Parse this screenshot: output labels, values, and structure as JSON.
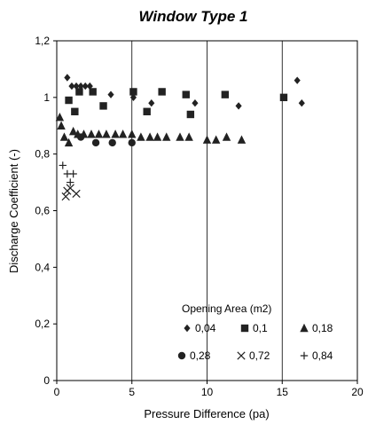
{
  "chart_data": {
    "type": "scatter",
    "title": "Window Type 1",
    "xlabel": "Pressure Difference (pa)",
    "ylabel": "Discharge Coefficient (-)",
    "xlim": [
      0,
      20
    ],
    "ylim": [
      0,
      1.2
    ],
    "x_ticks": [
      "0",
      "5",
      "10",
      "15",
      "20"
    ],
    "y_ticks": [
      "0",
      "0,2",
      "0,4",
      "0,6",
      "0,8",
      "1",
      "1,2"
    ],
    "grid": "vertical",
    "legend": {
      "title": "Opening Area (m2)",
      "placement": "bottom-right"
    },
    "series": [
      {
        "name": "0,04",
        "marker": "diamond",
        "points": [
          [
            0.7,
            1.07
          ],
          [
            1.0,
            1.04
          ],
          [
            1.3,
            1.04
          ],
          [
            1.6,
            1.04
          ],
          [
            1.9,
            1.04
          ],
          [
            2.2,
            1.04
          ],
          [
            3.6,
            1.01
          ],
          [
            5.1,
            1.0
          ],
          [
            6.3,
            0.98
          ],
          [
            9.2,
            0.98
          ],
          [
            12.1,
            0.97
          ],
          [
            16.0,
            1.06
          ],
          [
            16.3,
            0.98
          ]
        ]
      },
      {
        "name": "0,1",
        "marker": "square",
        "points": [
          [
            0.8,
            0.99
          ],
          [
            1.2,
            0.95
          ],
          [
            1.5,
            1.02
          ],
          [
            2.4,
            1.02
          ],
          [
            3.1,
            0.97
          ],
          [
            5.1,
            1.02
          ],
          [
            6.0,
            0.95
          ],
          [
            7.0,
            1.02
          ],
          [
            8.6,
            1.01
          ],
          [
            8.9,
            0.94
          ],
          [
            11.2,
            1.01
          ],
          [
            15.1,
            1.0
          ]
        ]
      },
      {
        "name": "0,18",
        "marker": "triangle",
        "points": [
          [
            0.2,
            0.93
          ],
          [
            0.3,
            0.9
          ],
          [
            0.5,
            0.86
          ],
          [
            0.8,
            0.84
          ],
          [
            1.1,
            0.88
          ],
          [
            1.4,
            0.87
          ],
          [
            1.8,
            0.87
          ],
          [
            2.3,
            0.87
          ],
          [
            2.8,
            0.87
          ],
          [
            3.3,
            0.87
          ],
          [
            3.9,
            0.87
          ],
          [
            4.4,
            0.87
          ],
          [
            5.0,
            0.87
          ],
          [
            5.6,
            0.86
          ],
          [
            6.2,
            0.86
          ],
          [
            6.7,
            0.86
          ],
          [
            7.3,
            0.86
          ],
          [
            8.2,
            0.86
          ],
          [
            8.8,
            0.86
          ],
          [
            10.0,
            0.85
          ],
          [
            10.6,
            0.85
          ],
          [
            11.3,
            0.86
          ],
          [
            12.3,
            0.85
          ]
        ]
      },
      {
        "name": "0,28",
        "marker": "circle",
        "points": [
          [
            1.6,
            0.86
          ],
          [
            2.6,
            0.84
          ],
          [
            3.7,
            0.84
          ],
          [
            5.0,
            0.84
          ]
        ]
      },
      {
        "name": "0,72",
        "marker": "x",
        "points": [
          [
            0.6,
            0.65
          ],
          [
            0.9,
            0.68
          ],
          [
            1.3,
            0.66
          ],
          [
            0.7,
            0.67
          ]
        ]
      },
      {
        "name": "0,84",
        "marker": "plus",
        "points": [
          [
            0.4,
            0.76
          ],
          [
            0.7,
            0.73
          ],
          [
            1.1,
            0.73
          ],
          [
            0.9,
            0.7
          ]
        ]
      }
    ]
  }
}
